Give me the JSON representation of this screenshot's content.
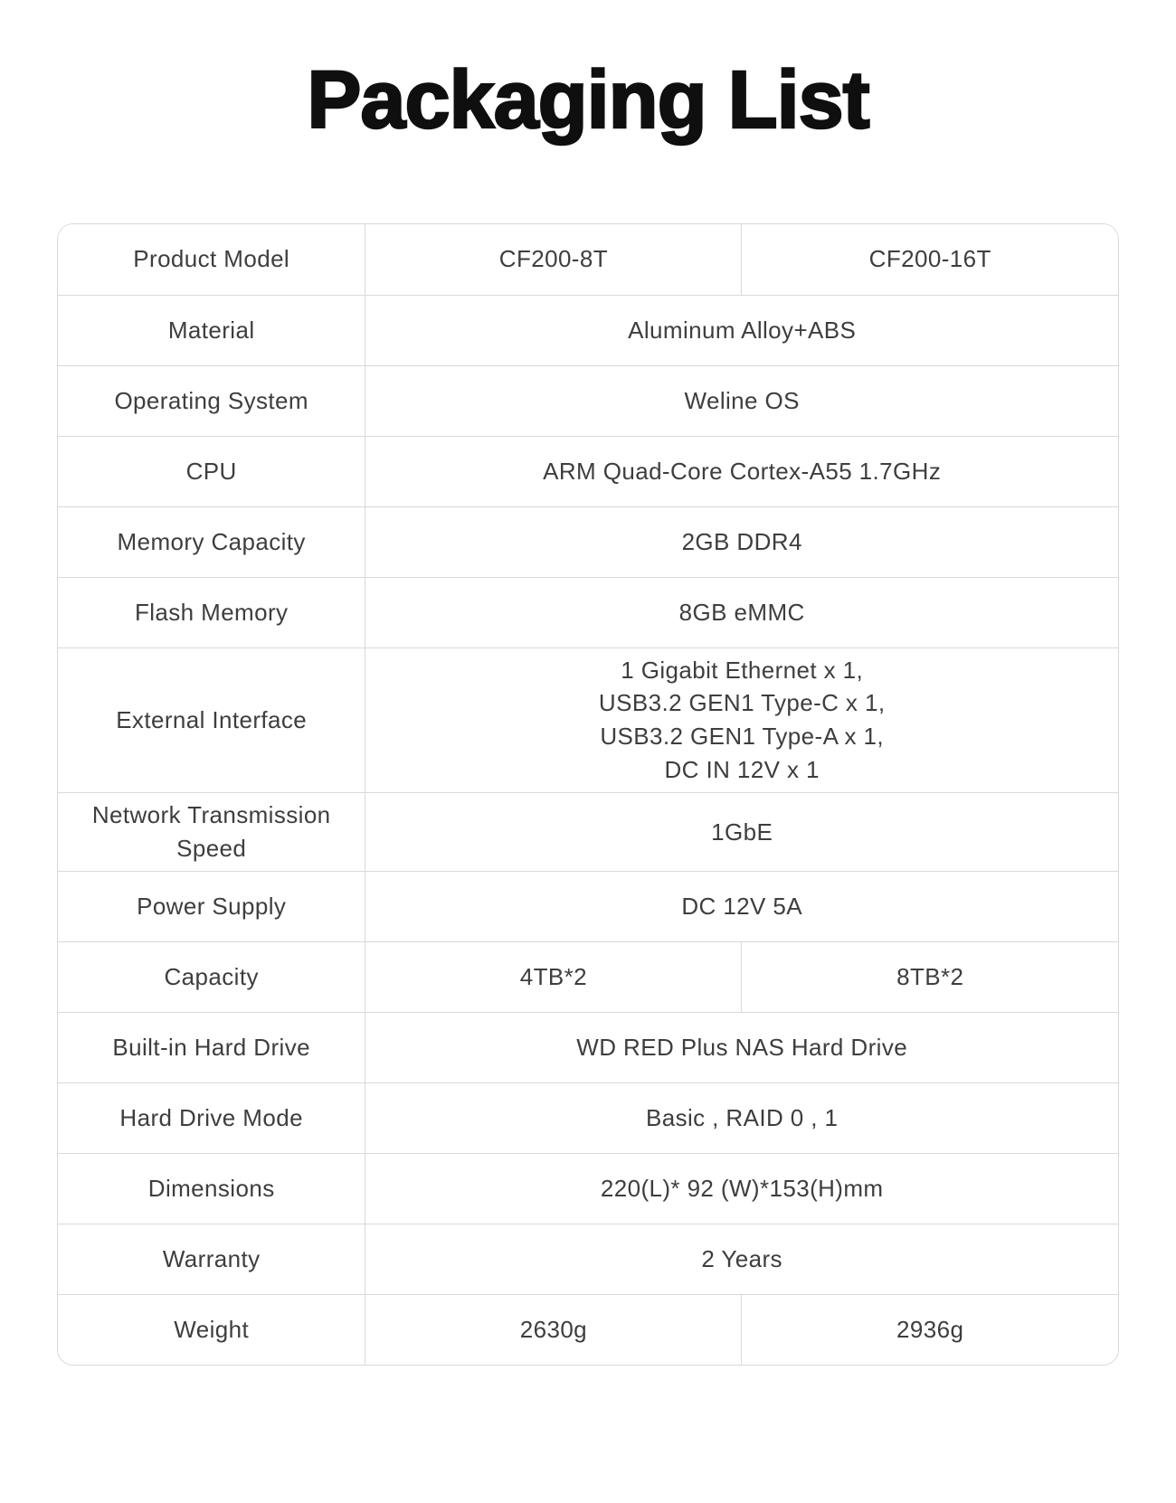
{
  "title": "Packaging List",
  "colors": {
    "background": "#ffffff",
    "text": "#3e3e3e",
    "border": "#d9d9d9",
    "title": "#0f0f0f"
  },
  "table": {
    "rows": [
      {
        "label": "Product Model",
        "values": [
          "CF200-8T",
          "CF200-16T"
        ]
      },
      {
        "label": "Material",
        "value": "Aluminum Alloy+ABS"
      },
      {
        "label": "Operating System",
        "value": "Weline OS"
      },
      {
        "label": "CPU",
        "value": "ARM Quad-Core Cortex-A55 1.7GHz"
      },
      {
        "label": "Memory Capacity",
        "value": "2GB DDR4"
      },
      {
        "label": "Flash Memory",
        "value": "8GB eMMC"
      },
      {
        "label": "External Interface",
        "value": "1 Gigabit Ethernet x 1,\nUSB3.2 GEN1 Type-C x 1,\nUSB3.2 GEN1 Type-A x 1,\nDC IN 12V x 1"
      },
      {
        "label": "Network Transmission Speed",
        "value": "1GbE"
      },
      {
        "label": "Power Supply",
        "value": "DC 12V 5A"
      },
      {
        "label": "Capacity",
        "values": [
          "4TB*2",
          "8TB*2"
        ]
      },
      {
        "label": "Built-in Hard Drive",
        "value": "WD RED Plus NAS Hard Drive"
      },
      {
        "label": "Hard Drive Mode",
        "value": "Basic , RAID 0 , 1"
      },
      {
        "label": "Dimensions",
        "value": "220(L)* 92 (W)*153(H)mm"
      },
      {
        "label": "Warranty",
        "value": "2 Years"
      },
      {
        "label": "Weight",
        "values": [
          "2630g",
          "2936g"
        ]
      }
    ]
  }
}
